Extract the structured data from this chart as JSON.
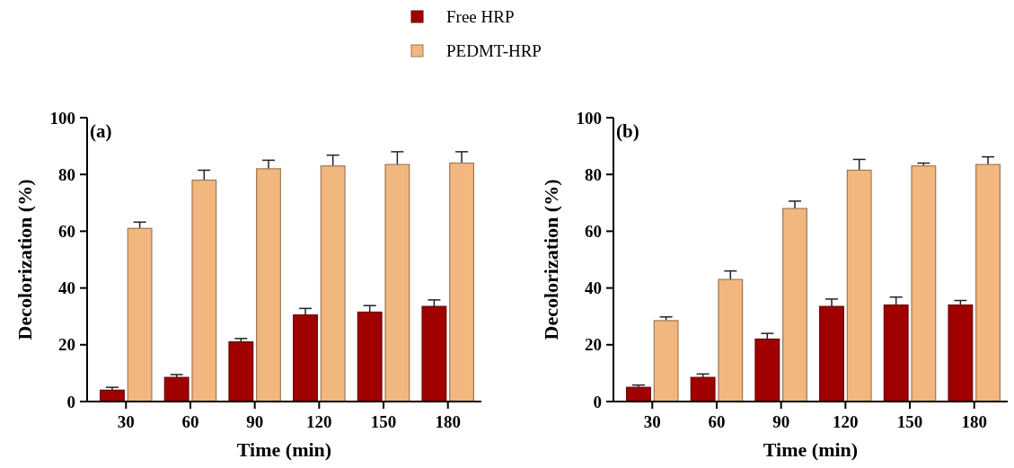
{
  "chart_data": [
    {
      "type": "bar",
      "title": "(a)",
      "xlabel": "Time (min)",
      "ylabel": "Decolorization (%)",
      "categories": [
        "30",
        "60",
        "90",
        "120",
        "150",
        "180"
      ],
      "ylim": [
        0,
        100
      ],
      "yticks": [
        0,
        20,
        40,
        60,
        80,
        100
      ],
      "legend": "top",
      "series": [
        {
          "name": "Free HRP",
          "color": "#a00000",
          "values": [
            4,
            8.5,
            21,
            30.5,
            31.5,
            33.5
          ],
          "errors": [
            1,
            1,
            1.2,
            2.3,
            2.3,
            2.3
          ]
        },
        {
          "name": "PEDMT-HRP",
          "color": "#f2b77f",
          "values": [
            61,
            78,
            82,
            83,
            83.5,
            84
          ],
          "errors": [
            2.2,
            3.5,
            3,
            3.8,
            4.5,
            4
          ]
        }
      ]
    },
    {
      "type": "bar",
      "title": "(b)",
      "xlabel": "Time (min)",
      "ylabel": "Decolorization (%)",
      "categories": [
        "30",
        "60",
        "90",
        "120",
        "150",
        "180"
      ],
      "ylim": [
        0,
        100
      ],
      "yticks": [
        0,
        20,
        40,
        60,
        80,
        100
      ],
      "series": [
        {
          "color": "#a00000",
          "values": [
            5,
            8.5,
            22,
            33.5,
            34,
            34
          ],
          "errors": [
            0.8,
            1.2,
            2,
            2.6,
            2.8,
            1.6
          ]
        },
        {
          "color": "#f2b77f",
          "values": [
            28.5,
            43,
            68,
            81.5,
            83,
            83.5
          ],
          "errors": [
            1.3,
            3,
            2.6,
            3.8,
            1,
            2.7
          ]
        }
      ]
    }
  ]
}
